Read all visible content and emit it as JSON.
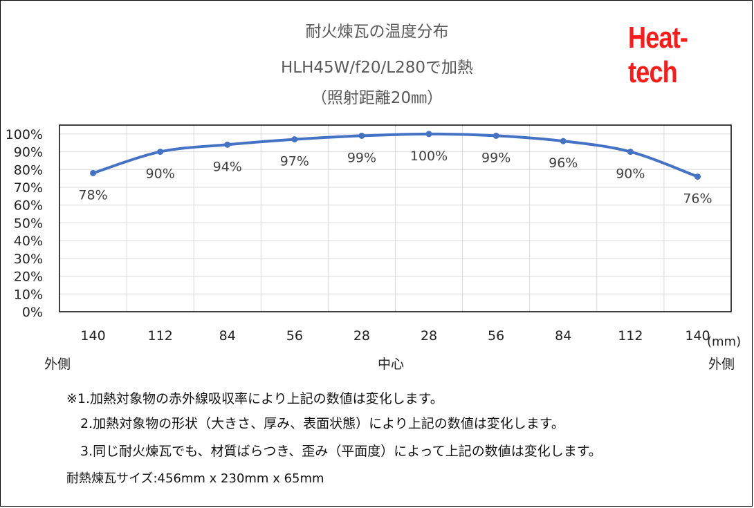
{
  "chart_data": {
    "type": "line",
    "title": "耐火煉瓦の温度分布",
    "subtitle": "HLH45W/f20/L280で加熱",
    "subtitle2": "（照射距離20㎜）",
    "categories": [
      "140",
      "112",
      "84",
      "56",
      "28",
      "28",
      "56",
      "84",
      "112",
      "140"
    ],
    "values": [
      78,
      90,
      94,
      97,
      99,
      100,
      99,
      96,
      90,
      76
    ],
    "data_labels": [
      "78%",
      "90%",
      "94%",
      "97%",
      "99%",
      "100%",
      "99%",
      "96%",
      "90%",
      "76%"
    ],
    "y_ticks": [
      "0%",
      "10%",
      "20%",
      "30%",
      "40%",
      "50%",
      "60%",
      "70%",
      "80%",
      "90%",
      "100%"
    ],
    "ylim": [
      0,
      105
    ],
    "x_unit": "(mm)",
    "x_side_labels": {
      "left": "外側",
      "center": "中心",
      "right": "外側"
    },
    "grid": true,
    "line_color": "#4472C4"
  },
  "logo": {
    "text": "Heat-tech",
    "color": "#ff1a1a"
  },
  "notes": [
    "※1.加熱対象物の赤外線吸収率により上記の数値は変化します。",
    "2.加熱対象物の形状（大きさ、厚み、表面状態）により上記の数値は変化します。",
    "3.同じ耐火煉瓦でも、材質ばらつき、歪み（平面度）によって上記の数値は変化します。",
    "耐熱煉瓦サイズ:456mm x 230mm x 65mm"
  ]
}
